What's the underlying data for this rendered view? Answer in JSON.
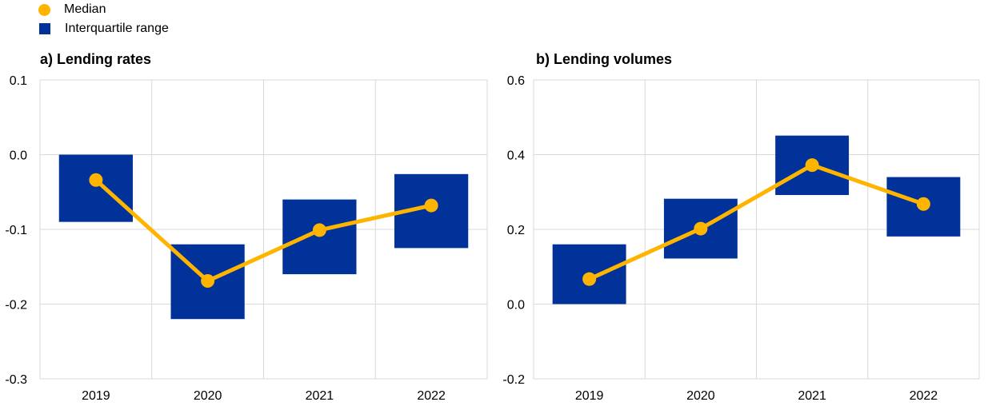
{
  "legend": {
    "median_label": "Median",
    "iqr_label": "Interquartile range"
  },
  "colors": {
    "median": "#FFB400",
    "iqr": "#003299",
    "grid": "#D9D9D9"
  },
  "chart_data": [
    {
      "type": "boxplot-line",
      "title": "a) Lending rates",
      "categories": [
        "2019",
        "2020",
        "2021",
        "2022"
      ],
      "ylim": [
        -0.3,
        0.1
      ],
      "yticks": [
        0.1,
        0.0,
        -0.1,
        -0.2,
        -0.3
      ],
      "ytick_labels": [
        "0.1",
        "0.0",
        "-0.1",
        "-0.2",
        "-0.3"
      ],
      "series": [
        {
          "name": "Interquartile range",
          "low": [
            -0.09,
            -0.22,
            -0.16,
            -0.125
          ],
          "high": [
            0.0,
            -0.12,
            -0.06,
            -0.026
          ]
        },
        {
          "name": "Median",
          "values": [
            -0.034,
            -0.169,
            -0.101,
            -0.068
          ]
        }
      ]
    },
    {
      "type": "boxplot-line",
      "title": "b) Lending volumes",
      "categories": [
        "2019",
        "2020",
        "2021",
        "2022"
      ],
      "ylim": [
        -0.2,
        0.6
      ],
      "yticks": [
        0.6,
        0.4,
        0.2,
        0.0,
        -0.2
      ],
      "ytick_labels": [
        "0.6",
        "0.4",
        "0.2",
        "0.0",
        "-0.2"
      ],
      "series": [
        {
          "name": "Interquartile range",
          "low": [
            0.0,
            0.122,
            0.292,
            0.181
          ],
          "high": [
            0.16,
            0.282,
            0.451,
            0.34
          ]
        },
        {
          "name": "Median",
          "values": [
            0.067,
            0.202,
            0.372,
            0.268
          ]
        }
      ]
    }
  ]
}
